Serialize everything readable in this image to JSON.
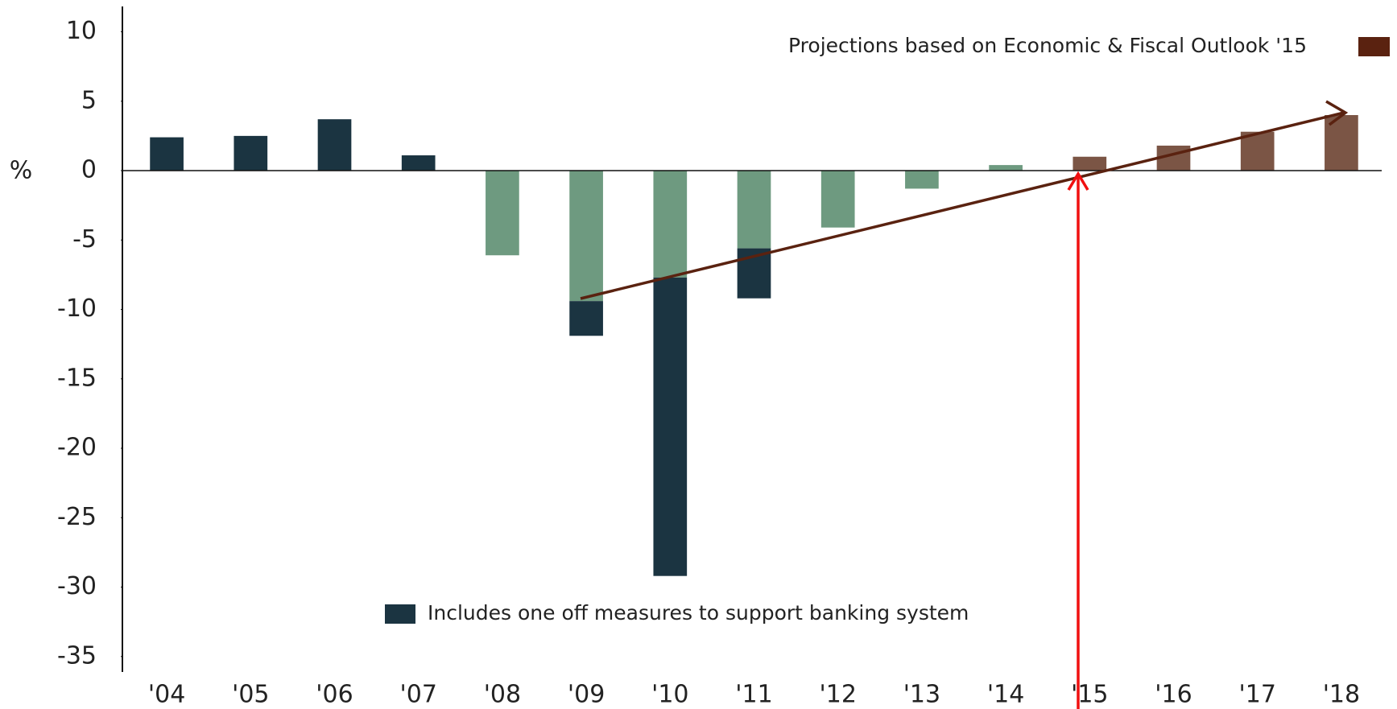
{
  "chart_data": {
    "type": "bar",
    "stacked": true,
    "y_label": "%",
    "categories": [
      "'04",
      "'05",
      "'06",
      "'07",
      "'08",
      "'09",
      "'10",
      "'11",
      "'12",
      "'13",
      "'14",
      "'15",
      "'16",
      "'17",
      "'18"
    ],
    "series": [
      {
        "color": "#6e9a80",
        "values": [
          null,
          null,
          null,
          null,
          -6.1,
          -9.4,
          -7.7,
          -5.6,
          -4.1,
          -1.3,
          0.4,
          null,
          null,
          null,
          null
        ]
      },
      {
        "name": "Includes one off measures to support banking system",
        "color": "#1b3441",
        "values": [
          2.4,
          2.5,
          3.7,
          1.1,
          null,
          -2.5,
          -21.5,
          -3.6,
          null,
          null,
          null,
          null,
          null,
          null,
          null
        ]
      },
      {
        "name": "Projections based on Economic & Fiscal Outlook '15",
        "color": "#7b5545",
        "values": [
          null,
          null,
          null,
          null,
          null,
          null,
          null,
          null,
          null,
          null,
          null,
          1.0,
          1.8,
          2.8,
          4.0
        ]
      }
    ],
    "ylim": [
      -36,
      12
    ],
    "yticks": [
      10,
      5,
      0,
      -5,
      -10,
      -15,
      -20,
      -25,
      -30,
      -35
    ],
    "grid": false
  }
}
